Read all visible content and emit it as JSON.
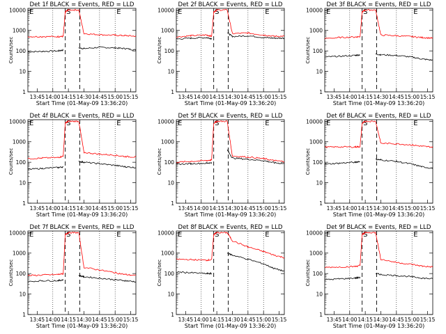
{
  "figure": {
    "ylabel": "Counts/sec",
    "xlabel": "Start Time (01-May-09 13:36:20)",
    "x_ticks": [
      "13:45",
      "14:00",
      "14:15",
      "14:30",
      "14:45",
      "15:00",
      "15:15"
    ],
    "y_ticks": [
      "1",
      "10",
      "100",
      "1000",
      "10000"
    ],
    "marker_labels": {
      "start": "E",
      "saa": "S"
    },
    "colors": {
      "events": "#000000",
      "lld": "#ff0000"
    }
  },
  "chart_data": [
    {
      "type": "line",
      "title": "Det 1f BLACK = Events, RED = LLD",
      "xlabel": "Start Time (01-May-09 13:36:20)",
      "ylabel": "Counts/sec",
      "ylim": [
        1,
        12000
      ],
      "xlim": [
        "13:36",
        "15:20"
      ],
      "y_scale": "log",
      "x": [
        "13:36",
        "13:50",
        "14:05",
        "14:10",
        "14:12",
        "14:15",
        "14:25",
        "14:30",
        "14:45",
        "15:00",
        "15:10",
        "15:20"
      ],
      "series": [
        {
          "name": "Events",
          "values": [
            90,
            95,
            100,
            110,
            null,
            null,
            140,
            130,
            150,
            140,
            130,
            110
          ]
        },
        {
          "name": "LLD",
          "values": [
            500,
            500,
            500,
            510,
            8000,
            10000,
            10000,
            700,
            620,
            580,
            560,
            520
          ]
        }
      ]
    },
    {
      "type": "line",
      "title": "Det 2f BLACK = Events, RED = LLD",
      "xlabel": "Start Time (01-May-09 13:36:20)",
      "ylabel": "Counts/sec",
      "ylim": [
        1,
        12000
      ],
      "xlim": [
        "13:36",
        "15:20"
      ],
      "y_scale": "log",
      "x": [
        "13:36",
        "13:50",
        "14:05",
        "14:10",
        "14:12",
        "14:15",
        "14:25",
        "14:30",
        "14:45",
        "15:00",
        "15:10",
        "15:20"
      ],
      "series": [
        {
          "name": "Events",
          "values": [
            380,
            420,
            450,
            400,
            null,
            null,
            800,
            500,
            550,
            450,
            420,
            420
          ]
        },
        {
          "name": "LLD",
          "values": [
            480,
            550,
            600,
            520,
            8000,
            10000,
            10000,
            700,
            750,
            600,
            520,
            520
          ]
        }
      ]
    },
    {
      "type": "line",
      "title": "Det 3f BLACK = Events, RED = LLD",
      "xlabel": "Start Time (01-May-09 13:36:20)",
      "ylabel": "Counts/sec",
      "ylim": [
        1,
        12000
      ],
      "xlim": [
        "13:36",
        "15:20"
      ],
      "y_scale": "log",
      "x": [
        "13:36",
        "13:50",
        "14:05",
        "14:10",
        "14:12",
        "14:15",
        "14:25",
        "14:30",
        "14:45",
        "15:00",
        "15:10",
        "15:20"
      ],
      "series": [
        {
          "name": "Events",
          "values": [
            50,
            55,
            60,
            65,
            null,
            null,
            70,
            65,
            60,
            50,
            40,
            35
          ]
        },
        {
          "name": "LLD",
          "values": [
            400,
            450,
            480,
            500,
            8000,
            10000,
            10000,
            600,
            550,
            500,
            450,
            420
          ]
        }
      ]
    },
    {
      "type": "line",
      "title": "Det 4f BLACK = Events, RED = LLD",
      "xlabel": "Start Time (01-May-09 13:36:20)",
      "ylabel": "Counts/sec",
      "ylim": [
        1,
        12000
      ],
      "xlim": [
        "13:36",
        "15:20"
      ],
      "y_scale": "log",
      "x": [
        "13:36",
        "13:50",
        "14:05",
        "14:10",
        "14:12",
        "14:15",
        "14:25",
        "14:30",
        "14:45",
        "15:00",
        "15:10",
        "15:20"
      ],
      "series": [
        {
          "name": "Events",
          "values": [
            45,
            50,
            55,
            60,
            null,
            null,
            110,
            100,
            85,
            70,
            60,
            55
          ]
        },
        {
          "name": "LLD",
          "values": [
            150,
            160,
            170,
            200,
            8000,
            10000,
            10000,
            300,
            250,
            220,
            190,
            180
          ]
        }
      ]
    },
    {
      "type": "line",
      "title": "Det 5f BLACK = Events, RED = LLD",
      "xlabel": "Start Time (01-May-09 13:36:20)",
      "ylabel": "Counts/sec",
      "ylim": [
        1,
        12000
      ],
      "xlim": [
        "13:36",
        "15:20"
      ],
      "y_scale": "log",
      "x": [
        "13:36",
        "13:50",
        "14:05",
        "14:10",
        "14:12",
        "14:15",
        "14:25",
        "14:30",
        "14:45",
        "15:00",
        "15:10",
        "15:20"
      ],
      "series": [
        {
          "name": "Events",
          "values": [
            80,
            85,
            90,
            95,
            null,
            null,
            400,
            160,
            140,
            120,
            95,
            85
          ]
        },
        {
          "name": "LLD",
          "values": [
            100,
            110,
            120,
            130,
            8000,
            10000,
            10000,
            200,
            180,
            150,
            120,
            110
          ]
        }
      ]
    },
    {
      "type": "line",
      "title": "Det 6f BLACK = Events, RED = LLD",
      "xlabel": "Start Time (01-May-09 13:36:20)",
      "ylabel": "Counts/sec",
      "ylim": [
        1,
        12000
      ],
      "xlim": [
        "13:36",
        "15:20"
      ],
      "y_scale": "log",
      "x": [
        "13:36",
        "13:50",
        "14:05",
        "14:10",
        "14:12",
        "14:15",
        "14:25",
        "14:30",
        "14:45",
        "15:00",
        "15:10",
        "15:20"
      ],
      "series": [
        {
          "name": "Events",
          "values": [
            80,
            90,
            100,
            110,
            null,
            null,
            140,
            130,
            110,
            80,
            60,
            50
          ]
        },
        {
          "name": "LLD",
          "values": [
            550,
            560,
            560,
            580,
            8000,
            10000,
            10000,
            850,
            800,
            700,
            600,
            550
          ]
        }
      ]
    },
    {
      "type": "line",
      "title": "Det 7f BLACK = Events, RED = LLD",
      "xlabel": "Start Time (01-May-09 13:36:20)",
      "ylabel": "Counts/sec",
      "ylim": [
        1,
        12000
      ],
      "xlim": [
        "13:36",
        "15:20"
      ],
      "y_scale": "log",
      "x": [
        "13:36",
        "13:50",
        "14:05",
        "14:10",
        "14:12",
        "14:15",
        "14:25",
        "14:30",
        "14:45",
        "15:00",
        "15:10",
        "15:20"
      ],
      "series": [
        {
          "name": "Events",
          "values": [
            40,
            45,
            45,
            50,
            null,
            null,
            80,
            70,
            60,
            50,
            45,
            40
          ]
        },
        {
          "name": "LLD",
          "values": [
            80,
            85,
            90,
            100,
            8000,
            10000,
            10000,
            200,
            150,
            110,
            90,
            80
          ]
        }
      ]
    },
    {
      "type": "line",
      "title": "Det 8f BLACK = Events, RED = LLD",
      "xlabel": "Start Time (01-May-09 13:36:20)",
      "ylabel": "Counts/sec",
      "ylim": [
        1,
        12000
      ],
      "xlim": [
        "13:36",
        "15:20"
      ],
      "y_scale": "log",
      "x": [
        "13:36",
        "13:50",
        "14:05",
        "14:10",
        "14:12",
        "14:15",
        "14:25",
        "14:30",
        "14:45",
        "15:00",
        "15:10",
        "15:20"
      ],
      "series": [
        {
          "name": "Events",
          "values": [
            120,
            110,
            100,
            100,
            null,
            null,
            1000,
            800,
            500,
            300,
            180,
            130
          ]
        },
        {
          "name": "LLD",
          "values": [
            500,
            480,
            450,
            480,
            8000,
            10000,
            10000,
            4000,
            2000,
            1200,
            800,
            600
          ]
        }
      ]
    },
    {
      "type": "line",
      "title": "Det 9f BLACK = Events, RED = LLD",
      "xlabel": "Start Time (01-May-09 13:36:20)",
      "ylabel": "Counts/sec",
      "ylim": [
        1,
        12000
      ],
      "xlim": [
        "13:36",
        "15:20"
      ],
      "y_scale": "log",
      "x": [
        "13:36",
        "13:50",
        "14:05",
        "14:10",
        "14:12",
        "14:15",
        "14:25",
        "14:30",
        "14:45",
        "15:00",
        "15:10",
        "15:20"
      ],
      "series": [
        {
          "name": "Events",
          "values": [
            50,
            55,
            60,
            65,
            null,
            null,
            100,
            90,
            80,
            70,
            60,
            55
          ]
        },
        {
          "name": "LLD",
          "values": [
            200,
            210,
            220,
            250,
            8000,
            10000,
            10000,
            500,
            350,
            280,
            230,
            210
          ]
        }
      ]
    }
  ]
}
